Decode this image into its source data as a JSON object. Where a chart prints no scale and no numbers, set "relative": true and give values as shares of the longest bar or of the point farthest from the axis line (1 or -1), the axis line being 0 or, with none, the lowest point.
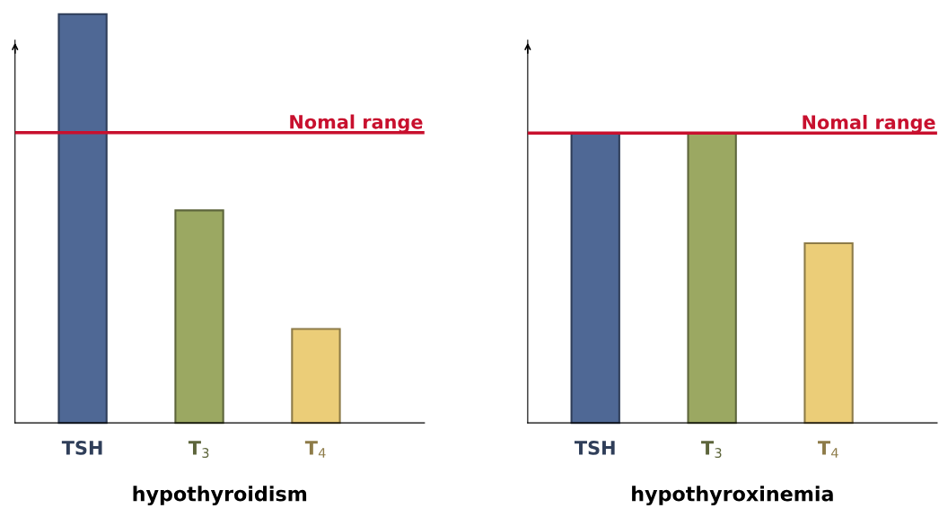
{
  "chart_data": [
    {
      "type": "bar",
      "relative": true,
      "xlabel": "hypothyroidism",
      "categories": [
        "TSH",
        "T$_{3}$",
        "T$_{4}$"
      ],
      "values": [
        1,
        0.52,
        0.23
      ],
      "colors": [
        "#4f6895",
        "#9ba862",
        "#ebcd78"
      ],
      "ref_lines": [
        {
          "axis": "y",
          "value": 0.71,
          "label": "Nomal range",
          "color": "#c8102e"
        }
      ]
    },
    {
      "type": "bar",
      "relative": true,
      "xlabel": "hypothyroxinemia",
      "categories": [
        "TSH",
        "T$_{3}$",
        "T$_{4}$"
      ],
      "values": [
        1,
        1,
        0.62
      ],
      "colors": [
        "#4f6895",
        "#9ba862",
        "#ebcd78"
      ],
      "ref_lines": [
        {
          "axis": "y",
          "value": 1,
          "label": "Nomal range",
          "color": "#c8102e"
        }
      ]
    }
  ]
}
